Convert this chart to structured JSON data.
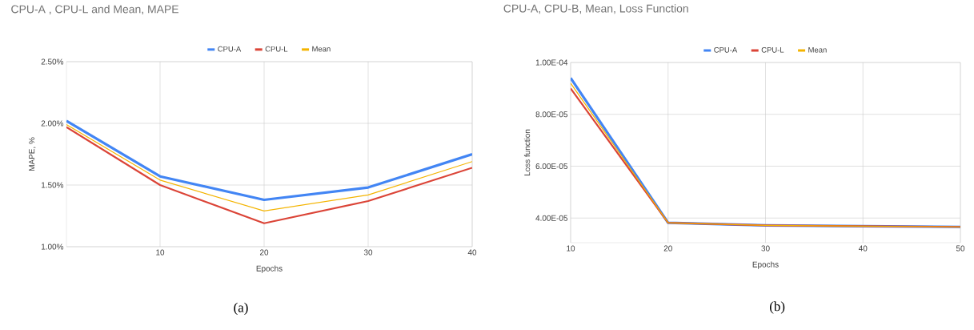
{
  "chart_data": [
    {
      "type": "line",
      "title": "CPU-A , CPU-L and Mean, MAPE",
      "xlabel": "Epochs",
      "ylabel": "MAPE, %",
      "x": [
        1,
        10,
        20,
        30,
        40
      ],
      "series": [
        {
          "name": "CPU-A",
          "color": "#4285f4",
          "values": [
            2.02,
            1.57,
            1.38,
            1.48,
            1.75
          ]
        },
        {
          "name": "CPU-L",
          "color": "#db4437",
          "values": [
            1.97,
            1.5,
            1.19,
            1.37,
            1.64
          ]
        },
        {
          "name": "Mean",
          "color": "#f4b400",
          "values": [
            1.99,
            1.54,
            1.29,
            1.42,
            1.69
          ]
        }
      ],
      "xlim": [
        1,
        40
      ],
      "xticks": [
        10,
        20,
        30,
        40
      ],
      "ylim": [
        1.0,
        2.5
      ],
      "yticks": [
        {
          "value": 1.0,
          "label": "1.00%"
        },
        {
          "value": 1.5,
          "label": "1.50%"
        },
        {
          "value": 2.0,
          "label": "2.00%"
        },
        {
          "value": 2.5,
          "label": "2.50%"
        }
      ],
      "grid": true,
      "legend": "top",
      "annotations": [
        "(a)"
      ]
    },
    {
      "type": "line",
      "title": "CPU-A, CPU-B, Mean, Loss Function",
      "xlabel": "Epochs",
      "ylabel": "Loss function",
      "x": [
        10,
        20,
        30,
        40,
        50
      ],
      "series": [
        {
          "name": "CPU-A",
          "color": "#4285f4",
          "values": [
            9.4e-05,
            3.82e-05,
            3.72e-05,
            3.69e-05,
            3.66e-05
          ]
        },
        {
          "name": "CPU-L",
          "color": "#db4437",
          "values": [
            9e-05,
            3.82e-05,
            3.72e-05,
            3.69e-05,
            3.66e-05
          ]
        },
        {
          "name": "Mean",
          "color": "#f4b400",
          "values": [
            9.2e-05,
            3.82e-05,
            3.72e-05,
            3.69e-05,
            3.66e-05
          ]
        }
      ],
      "xlim": [
        10,
        50
      ],
      "xticks": [
        10,
        20,
        30,
        40,
        50
      ],
      "ylim": [
        3.05e-05,
        0.0001
      ],
      "yticks": [
        {
          "value": 4e-05,
          "label": "4.00E-05"
        },
        {
          "value": 6e-05,
          "label": "6.00E-05"
        },
        {
          "value": 8e-05,
          "label": "8.00E-05"
        },
        {
          "value": 0.0001,
          "label": "1.00E-04"
        }
      ],
      "grid": true,
      "legend": "top",
      "annotations": [
        "(b)"
      ]
    }
  ]
}
